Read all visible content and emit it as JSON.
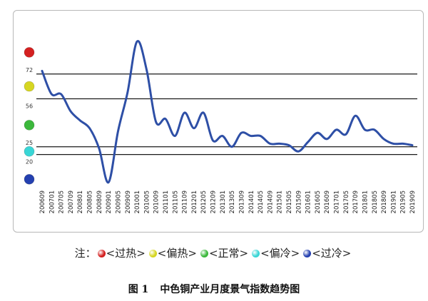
{
  "chart_data": {
    "type": "line",
    "title": "",
    "xlabel": "",
    "ylabel": "",
    "ylim": [
      0,
      100
    ],
    "grid": false,
    "thresholds": [
      72,
      56,
      25,
      20
    ],
    "threshold_labels": [
      "72",
      "56",
      "25",
      "20"
    ],
    "x_ticks": [
      "200609",
      "200701",
      "200705",
      "200709",
      "200801",
      "200805",
      "200809",
      "200901",
      "200905",
      "200909",
      "201001",
      "201005",
      "201009",
      "201101",
      "201105",
      "201109",
      "201201",
      "201205",
      "201209",
      "201301",
      "201305",
      "201309",
      "201401",
      "201405",
      "201409",
      "201501",
      "201505",
      "201509",
      "201601",
      "201605",
      "201609",
      "201701",
      "201705",
      "201709",
      "201801",
      "201805",
      "201809",
      "201901",
      "201905",
      "201909"
    ],
    "series": [
      {
        "color": "#2e4fa6",
        "x": [
          "200609",
          "200701",
          "200705",
          "200709",
          "200801",
          "200805",
          "200809",
          "200901",
          "200905",
          "200909",
          "201001",
          "201005",
          "201009",
          "201101",
          "201105",
          "201109",
          "201201",
          "201205",
          "201209",
          "201301",
          "201305",
          "201309",
          "201401",
          "201405",
          "201409",
          "201501",
          "201505",
          "201509",
          "201601",
          "201605",
          "201609",
          "201701",
          "201705",
          "201709",
          "201801",
          "201805",
          "201809",
          "201901",
          "201905",
          "201909"
        ],
        "values": [
          74,
          59,
          59,
          48,
          42,
          37,
          24,
          2,
          35,
          60,
          93,
          75,
          41,
          43,
          32,
          47,
          37,
          47,
          29,
          32,
          25,
          34,
          32,
          32,
          27,
          27,
          26,
          22,
          28,
          34,
          30,
          36,
          33,
          45,
          36,
          36,
          30,
          27,
          27,
          26
        ]
      }
    ],
    "status_indicators": [
      {
        "color": "#d42020",
        "value": 86
      },
      {
        "color": "#d6d622",
        "value": 64
      },
      {
        "color": "#3cb83c",
        "value": 39
      },
      {
        "color": "#39d6d6",
        "value": 22
      },
      {
        "color": "#2440b0",
        "value": 4
      }
    ]
  },
  "legend": {
    "prefix": "注：",
    "items": [
      {
        "label": "<过热>",
        "color": "#d42020"
      },
      {
        "label": "<偏热>",
        "color": "#d6d622"
      },
      {
        "label": "<正常>",
        "color": "#3cb83c"
      },
      {
        "label": "<偏冷>",
        "color": "#39d6d6"
      },
      {
        "label": "<过冷>",
        "color": "#2440b0"
      }
    ]
  },
  "caption": {
    "number": "图 1",
    "text": "中色铜产业月度景气指数趋势图"
  }
}
